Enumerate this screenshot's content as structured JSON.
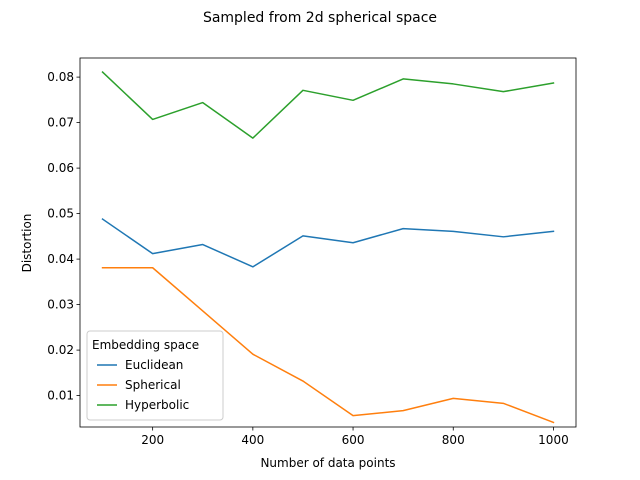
{
  "chart_data": {
    "type": "line",
    "title": "Sampled from 2d spherical space",
    "xlabel": "Number of data points",
    "ylabel": "Distortion",
    "x": [
      100,
      200,
      300,
      400,
      500,
      600,
      700,
      800,
      900,
      1000
    ],
    "xlim": [
      55,
      1045
    ],
    "ylim": [
      0.0031,
      0.0842
    ],
    "xticks": [
      200,
      400,
      600,
      800,
      1000
    ],
    "yticks": [
      0.01,
      0.02,
      0.03,
      0.04,
      0.05,
      0.06,
      0.07,
      0.08
    ],
    "ytick_labels": [
      "0.01",
      "0.02",
      "0.03",
      "0.04",
      "0.05",
      "0.06",
      "0.07",
      "0.08"
    ],
    "grid": false,
    "legend": {
      "title": "Embedding space",
      "placement": "lower-left"
    },
    "series": [
      {
        "name": "Euclidean",
        "color": "#1f77b4",
        "values": [
          0.0488,
          0.0412,
          0.0432,
          0.0383,
          0.0451,
          0.0436,
          0.0467,
          0.0461,
          0.0449,
          0.0461
        ]
      },
      {
        "name": "Spherical",
        "color": "#ff7f0e",
        "values": [
          0.0381,
          0.0381,
          0.0286,
          0.0191,
          0.0132,
          0.0056,
          0.0067,
          0.0094,
          0.0083,
          0.0041
        ]
      },
      {
        "name": "Hyperbolic",
        "color": "#2ca02c",
        "values": [
          0.0811,
          0.0707,
          0.0744,
          0.0666,
          0.0771,
          0.0749,
          0.0796,
          0.0785,
          0.0768,
          0.0787
        ]
      }
    ]
  }
}
